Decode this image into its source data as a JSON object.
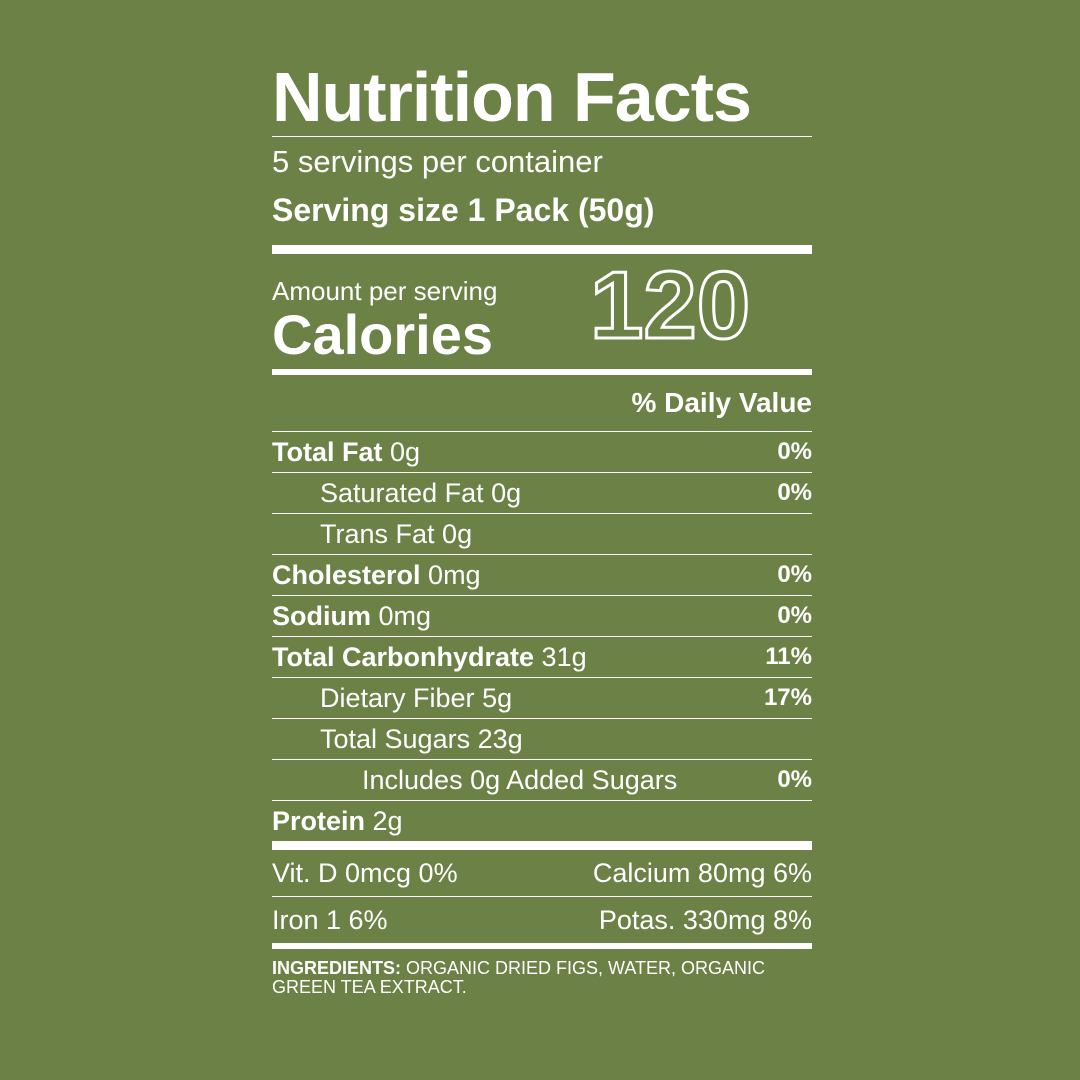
{
  "label": {
    "title": "Nutrition Facts",
    "servings": "5 servings per container",
    "serving_size": "Serving size 1 Pack (50g)",
    "amount_per_serving": "Amount per serving",
    "calories_label": "Calories",
    "calories_value": "120",
    "daily_value_header": "% Daily Value",
    "nutrients": [
      {
        "name": "Total Fat",
        "amount": "0g",
        "pct": "0%"
      },
      {
        "name": "Saturated Fat",
        "amount": "0g",
        "pct": "0%"
      },
      {
        "name": "Trans Fat",
        "amount": "0g",
        "pct": ""
      },
      {
        "name": "Cholesterol",
        "amount": "0mg",
        "pct": "0%"
      },
      {
        "name": "Sodium",
        "amount": "0mg",
        "pct": "0%"
      },
      {
        "name": "Total Carbonhydrate",
        "amount": "31g",
        "pct": "11%"
      },
      {
        "name": "Dietary Fiber",
        "amount": "5g",
        "pct": "17%"
      },
      {
        "name": "Total Sugars",
        "amount": "23g",
        "pct": ""
      },
      {
        "name": "Includes 0g Added Sugars",
        "amount": "",
        "pct": "0%"
      },
      {
        "name": "Protein",
        "amount": "2g",
        "pct": ""
      }
    ],
    "vitamins": [
      {
        "left": "Vit. D 0mcg 0%",
        "right": "Calcium 80mg 6%"
      },
      {
        "left": "Iron 1 6%",
        "right": "Potas. 330mg 8%"
      }
    ],
    "ingredients_label": "INGREDIENTS:",
    "ingredients_text": "ORGANIC DRIED FIGS, WATER, ORGANIC GREEN TEA EXTRACT."
  },
  "colors": {
    "background": "#6b8145",
    "text": "#ffffff"
  }
}
